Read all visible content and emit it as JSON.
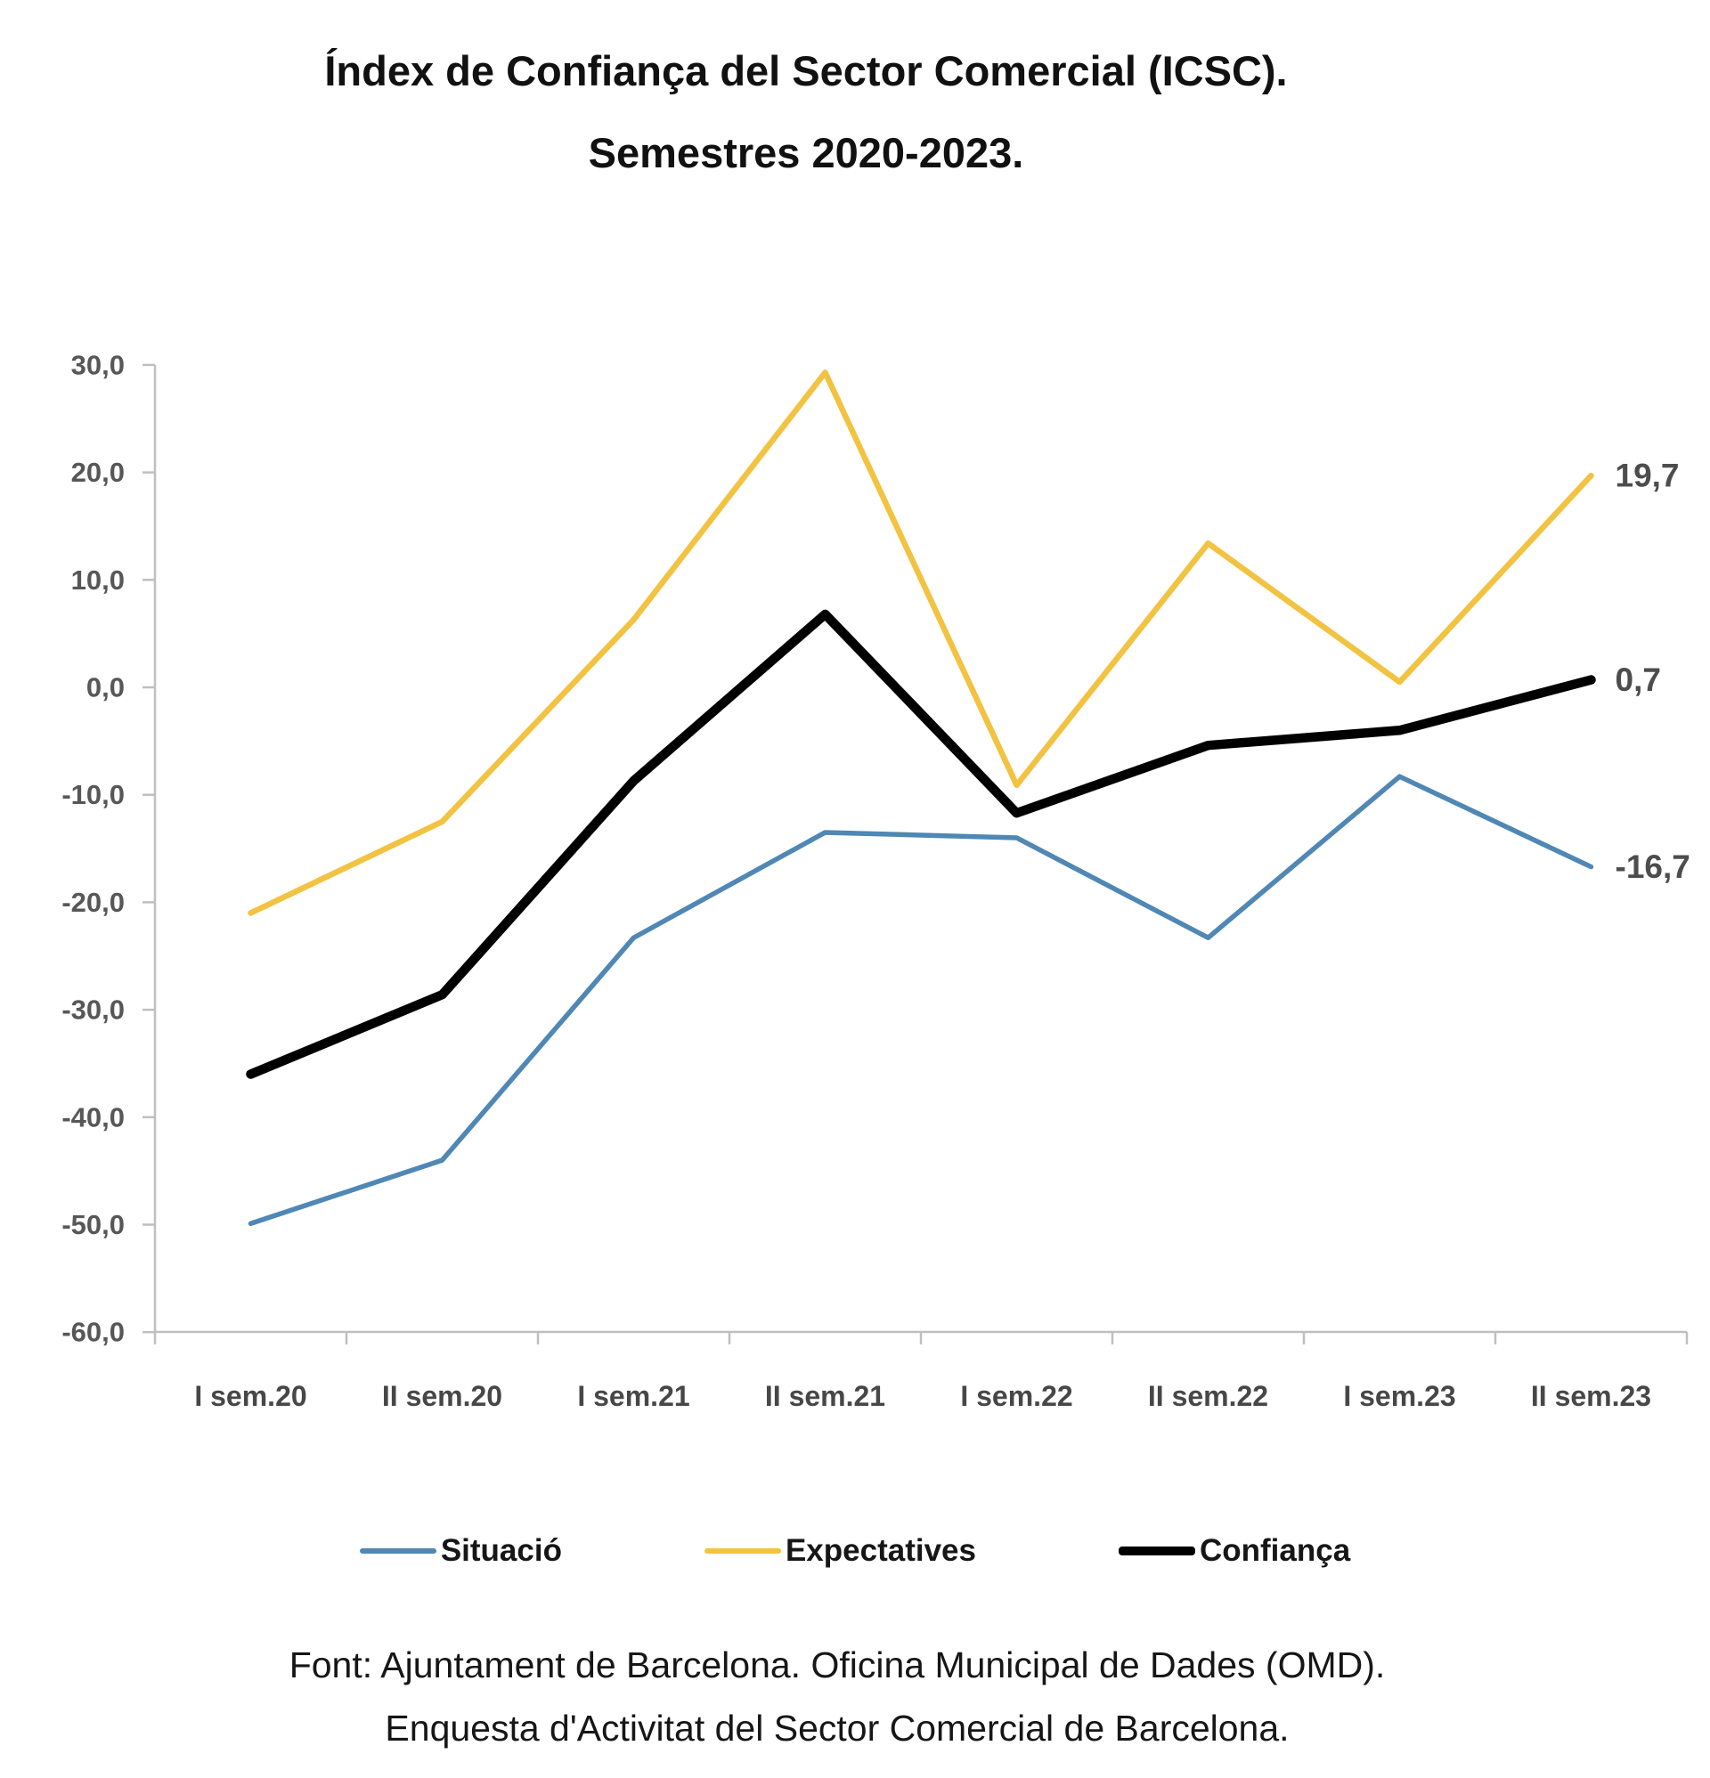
{
  "title": {
    "line1": "Índex de Confiança del Sector Comercial (ICSC).",
    "line2": "Semestres 2020-2023."
  },
  "footer": {
    "line1": "Font: Ajuntament de Barcelona. Oficina Municipal de Dades (OMD).",
    "line2": "Enquesta d'Activitat del Sector Comercial de Barcelona."
  },
  "chart_data": {
    "type": "line",
    "title": "Índex de Confiança del Sector Comercial (ICSC). Semestres 2020-2023.",
    "categories": [
      "I sem.20",
      "II sem.20",
      "I sem.21",
      "II sem.21",
      "I sem.22",
      "II sem.22",
      "I sem.23",
      "II sem.23"
    ],
    "series": [
      {
        "name": "Situació",
        "color": "#4F87B5",
        "stroke_width": 5.5,
        "values": [
          -49.9,
          -44.0,
          -23.3,
          -13.5,
          -14.0,
          -23.3,
          -8.3,
          -16.7
        ],
        "end_label": "-16,7"
      },
      {
        "name": "Expectatives",
        "color": "#F2C342",
        "stroke_width": 6.5,
        "values": [
          -21.0,
          -12.5,
          6.3,
          29.3,
          -9.1,
          13.4,
          0.5,
          19.7
        ],
        "end_label": "19,7"
      },
      {
        "name": "Confiança",
        "color": "#000000",
        "stroke_width": 10.5,
        "values": [
          -36.0,
          -28.6,
          -8.7,
          6.8,
          -11.7,
          -5.4,
          -4.0,
          0.7
        ],
        "end_label": "0,7"
      }
    ],
    "y_axis": {
      "min": -60,
      "max": 30,
      "step": 10,
      "tick_labels": [
        "30,0",
        "20,0",
        "10,0",
        "0,0",
        "-10,0",
        "-20,0",
        "-30,0",
        "-40,0",
        "-50,0",
        "-60,0"
      ]
    },
    "x_axis": {
      "tick_labels": [
        "I sem.20",
        "II sem.20",
        "I sem.21",
        "II sem.21",
        "I sem.22",
        "II sem.22",
        "I sem.23",
        "II sem.23"
      ]
    },
    "grid": false,
    "legend_position": "bottom"
  },
  "legend": {
    "items": [
      {
        "label": "Situació"
      },
      {
        "label": "Expectatives"
      },
      {
        "label": "Confiança"
      }
    ]
  }
}
